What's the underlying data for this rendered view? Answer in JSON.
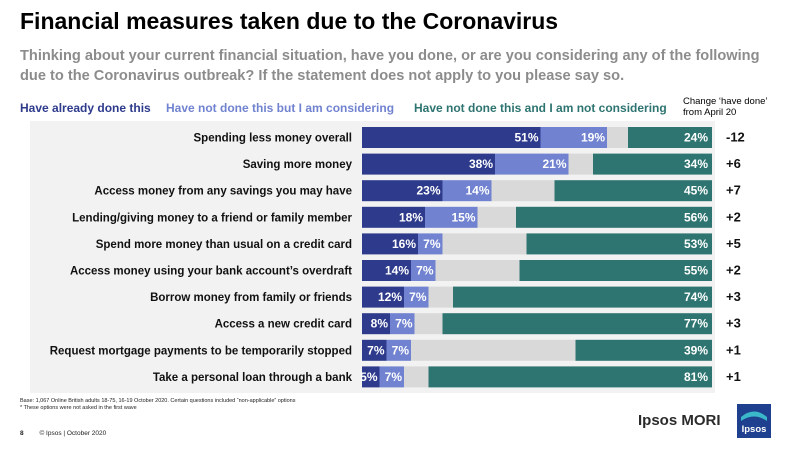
{
  "title": "Financial measures taken due to the Coronavirus",
  "subtitle": "Thinking about your current financial situation, have you done, or are you considering any of the following due to the Coronavirus outbreak? If the statement does not apply to you please say so.",
  "legend": {
    "done": "Have already done this",
    "considering": "Have not done this but I am considering",
    "not_considering": "Have not done this and I am not considering",
    "change_header_line1": "Change ‘have done’",
    "change_header_line2": "from April 20"
  },
  "colors": {
    "done": "#2e3b8c",
    "considering": "#7183d0",
    "other": "#d9d9d9",
    "not_considering": "#2e7470",
    "band": "#f2f2f2"
  },
  "chart_data": {
    "type": "bar",
    "orientation": "horizontal",
    "stacked": true,
    "categories": [
      "Spending less money overall",
      "Saving more money",
      "Access money from any savings you may have",
      "Lending/giving money to a friend or family member",
      "Spend more money than usual on a credit card",
      "Access money using your bank account’s overdraft",
      "Borrow money from family or friends",
      "Access a new credit card",
      "Request mortgage payments to be temporarily stopped",
      "Take a personal loan through a bank"
    ],
    "series": [
      {
        "name": "Have already done this",
        "values": [
          51,
          38,
          23,
          18,
          16,
          14,
          12,
          8,
          7,
          5
        ]
      },
      {
        "name": "Have not done this but I am considering",
        "values": [
          19,
          21,
          14,
          15,
          7,
          7,
          7,
          7,
          7,
          7
        ]
      },
      {
        "name": "Have not done this and I am not considering",
        "values": [
          24,
          34,
          45,
          56,
          53,
          55,
          74,
          77,
          39,
          81
        ]
      }
    ],
    "value_labels": {
      "done": [
        "51%",
        "38%",
        "23%",
        "18%",
        "16%",
        "14%",
        "12%",
        "8%",
        "7%",
        "5%"
      ],
      "considering": [
        "19%",
        "21%",
        "14%",
        "15%",
        "7%",
        "7%",
        "7%",
        "7%",
        "7%",
        "7%"
      ],
      "not_considering": [
        "24%",
        "34%",
        "45%",
        "56%",
        "53%",
        "55%",
        "74%",
        "77%",
        "39%",
        "81%"
      ]
    },
    "change": [
      "-12",
      "+6",
      "+7",
      "+2",
      "+5",
      "+2",
      "+3",
      "+3",
      "+1",
      "+1"
    ],
    "xlim": [
      0,
      100
    ]
  },
  "footnote_line1": "Base: 1,067 Online British adults 18-75, 16-19 October 2020. Certain questions included “non-applicable” options",
  "footnote_line2": "* These options were not asked in the first wave",
  "footer": {
    "page": "8",
    "copyright": "© Ipsos | October 2020"
  },
  "brand": "Ipsos MORI",
  "logo_text": "Ipsos"
}
